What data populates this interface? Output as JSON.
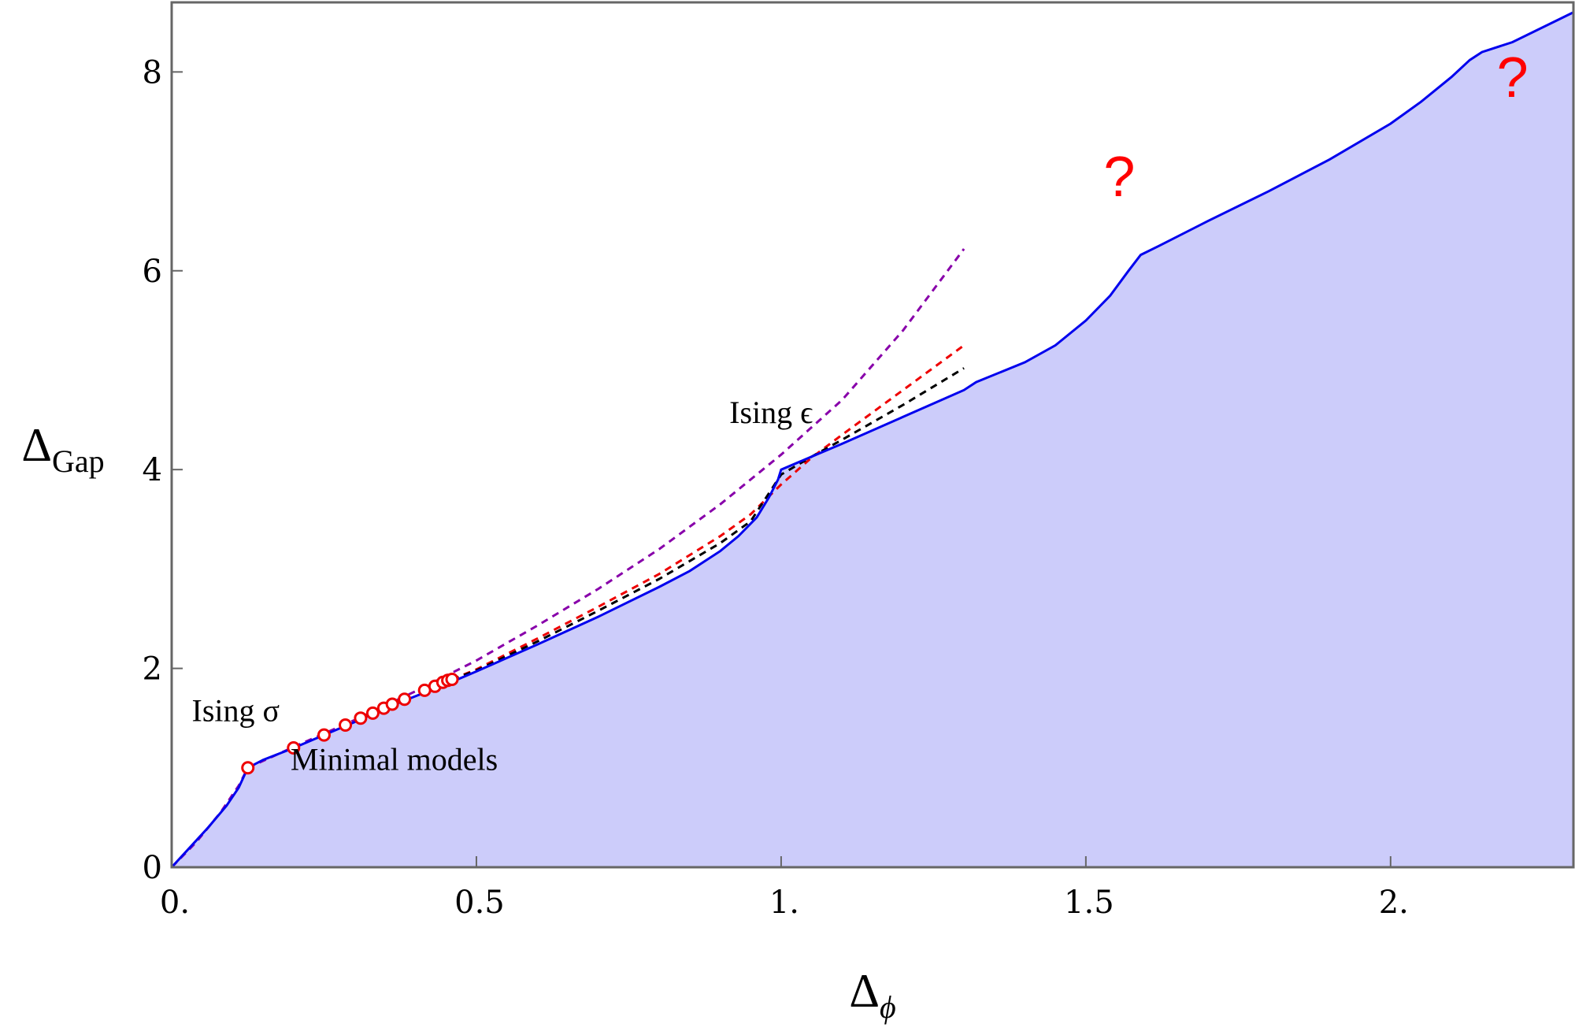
{
  "chart_data": {
    "type": "area",
    "xlabel": "Δ",
    "xlabel_sub": "ϕ",
    "ylabel": "Δ",
    "ylabel_sub": "Gap",
    "xlim": [
      0,
      2.3
    ],
    "ylim": [
      0,
      8.7
    ],
    "xticks": [
      {
        "value": 0,
        "label": "0."
      },
      {
        "value": 0.5,
        "label": "0.5"
      },
      {
        "value": 1,
        "label": "1."
      },
      {
        "value": 1.5,
        "label": "1.5"
      },
      {
        "value": 2,
        "label": "2."
      }
    ],
    "yticks": [
      {
        "value": 0,
        "label": "0"
      },
      {
        "value": 2,
        "label": "2"
      },
      {
        "value": 4,
        "label": "4"
      },
      {
        "value": 6,
        "label": "6"
      },
      {
        "value": 8,
        "label": "8"
      }
    ],
    "grid": false,
    "colors": {
      "boundary": "#0000ee",
      "fill": "#ccccfa",
      "purple_dashed": "#8800aa",
      "red_dashed": "#ee0000",
      "black_dashed": "#000000",
      "points": "#ee0000",
      "axis_frame": "#666666"
    },
    "boundary": {
      "x": [
        0,
        0.03,
        0.06,
        0.09,
        0.11,
        0.125,
        0.15,
        0.2,
        0.25,
        0.3,
        0.35,
        0.4,
        0.45,
        0.5,
        0.6,
        0.7,
        0.8,
        0.85,
        0.9,
        0.93,
        0.96,
        0.98,
        0.995,
        1.0,
        1.05,
        1.1,
        1.2,
        1.3,
        1.32,
        1.4,
        1.45,
        1.5,
        1.54,
        1.57,
        1.59,
        1.62,
        1.7,
        1.8,
        1.9,
        2.0,
        2.05,
        2.1,
        2.13,
        2.15,
        2.2,
        2.3
      ],
      "y": [
        0,
        0.2,
        0.4,
        0.62,
        0.8,
        1.0,
        1.08,
        1.2,
        1.33,
        1.46,
        1.6,
        1.72,
        1.84,
        1.97,
        2.24,
        2.52,
        2.82,
        2.98,
        3.18,
        3.33,
        3.52,
        3.72,
        3.9,
        4.0,
        4.13,
        4.26,
        4.53,
        4.8,
        4.88,
        5.08,
        5.25,
        5.5,
        5.75,
        6.0,
        6.16,
        6.25,
        6.5,
        6.8,
        7.12,
        7.48,
        7.7,
        7.95,
        8.12,
        8.2,
        8.3,
        8.6
      ]
    },
    "dashed_series": [
      {
        "color": "#8800aa",
        "x": [
          0,
          0.04,
          0.08,
          0.11,
          0.125,
          0.2,
          0.3,
          0.4,
          0.5,
          0.6,
          0.7,
          0.8,
          0.9,
          1.0,
          1.1,
          1.2,
          1.3
        ],
        "y": [
          0,
          0.25,
          0.55,
          0.82,
          1.0,
          1.21,
          1.48,
          1.77,
          2.08,
          2.43,
          2.8,
          3.2,
          3.65,
          4.15,
          4.7,
          5.4,
          6.22
        ]
      },
      {
        "color": "#ee0000",
        "x": [
          0.46,
          0.5,
          0.6,
          0.7,
          0.8,
          0.9,
          0.95,
          1.0,
          1.05,
          1.1,
          1.2,
          1.3
        ],
        "y": [
          1.89,
          1.99,
          2.3,
          2.62,
          2.95,
          3.33,
          3.55,
          3.85,
          4.12,
          4.35,
          4.8,
          5.25
        ]
      },
      {
        "color": "#000000",
        "x": [
          0.46,
          0.5,
          0.6,
          0.7,
          0.8,
          0.9,
          0.95,
          1.0,
          1.05,
          1.1,
          1.2,
          1.3
        ],
        "y": [
          1.89,
          1.98,
          2.27,
          2.58,
          2.9,
          3.26,
          3.48,
          3.95,
          4.13,
          4.3,
          4.65,
          5.02
        ]
      }
    ],
    "points": {
      "x": [
        0.125,
        0.2,
        0.25,
        0.285,
        0.31,
        0.33,
        0.348,
        0.362,
        0.382,
        0.415,
        0.432,
        0.445,
        0.453,
        0.46
      ],
      "y": [
        1.0,
        1.2,
        1.33,
        1.43,
        1.5,
        1.55,
        1.6,
        1.64,
        1.69,
        1.78,
        1.82,
        1.86,
        1.88,
        1.89
      ]
    },
    "annotations": [
      {
        "text": "Ising σ",
        "x": 0.033,
        "y": 1.47
      },
      {
        "text": "Minimal models",
        "x": 0.195,
        "y": 0.98
      },
      {
        "text": "Ising ϵ",
        "x": 0.915,
        "y": 4.47
      }
    ],
    "question_marks": [
      {
        "text": "?",
        "x": 1.555,
        "y": 6.75
      },
      {
        "text": "?",
        "x": 2.2,
        "y": 7.75
      }
    ]
  }
}
